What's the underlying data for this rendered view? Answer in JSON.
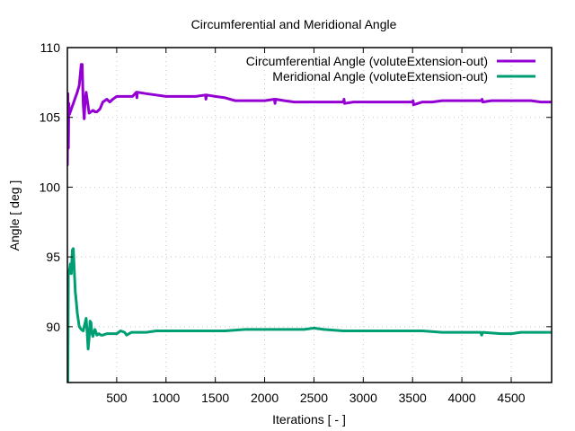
{
  "chart_data": {
    "type": "line",
    "title": "Circumferential and Meridional Angle",
    "xlabel": "Iterations [ - ]",
    "ylabel": "Angle [ deg ]",
    "xlim": [
      0,
      4910
    ],
    "ylim": [
      86.0,
      110
    ],
    "xticks": [
      500,
      1000,
      1500,
      2000,
      2500,
      3000,
      3500,
      4000,
      4500
    ],
    "xtick_labels": [
      "500",
      "1000",
      "1500",
      "2000",
      "2500",
      "3000",
      "3500",
      "4000",
      "4500"
    ],
    "yticks": [
      90,
      95,
      100,
      105,
      110
    ],
    "ytick_labels": [
      "90",
      "95",
      "100",
      "105",
      "110"
    ],
    "grid": true,
    "legend_position": "top-right",
    "series": [
      {
        "name": "Circumferential Angle (voluteExtension-out)",
        "color": "#9400d3",
        "x": [
          0,
          5,
          10,
          15,
          20,
          25,
          30,
          40,
          60,
          80,
          100,
          120,
          140,
          150,
          160,
          170,
          180,
          190,
          200,
          220,
          240,
          260,
          280,
          300,
          330,
          360,
          400,
          430,
          460,
          500,
          540,
          580,
          620,
          660,
          700,
          705,
          710,
          800,
          900,
          1000,
          1100,
          1200,
          1300,
          1400,
          1405,
          1410,
          1500,
          1600,
          1700,
          1800,
          1900,
          2000,
          2100,
          2105,
          2110,
          2200,
          2300,
          2400,
          2500,
          2600,
          2700,
          2800,
          2805,
          2810,
          2900,
          3000,
          3100,
          3200,
          3300,
          3400,
          3500,
          3505,
          3510,
          3600,
          3700,
          3800,
          3900,
          4000,
          4100,
          4200,
          4205,
          4210,
          4300,
          4400,
          4500,
          4600,
          4700,
          4800,
          4910
        ],
        "values": [
          101.6,
          106.7,
          102.8,
          106.0,
          105.2,
          105.3,
          105.4,
          105.6,
          106.0,
          106.4,
          106.8,
          107.3,
          108.8,
          108.8,
          106.0,
          104.9,
          106.2,
          106.8,
          106.3,
          105.3,
          105.4,
          105.5,
          105.4,
          105.4,
          105.6,
          106.1,
          106.3,
          106.1,
          106.3,
          106.5,
          106.5,
          106.5,
          106.5,
          106.5,
          106.8,
          106.4,
          106.8,
          106.7,
          106.6,
          106.5,
          106.5,
          106.5,
          106.5,
          106.6,
          106.3,
          106.6,
          106.5,
          106.4,
          106.2,
          106.2,
          106.2,
          106.2,
          106.3,
          106.0,
          106.3,
          106.2,
          106.1,
          106.1,
          106.1,
          106.1,
          106.1,
          106.1,
          106.3,
          106.0,
          106.1,
          106.1,
          106.1,
          106.1,
          106.1,
          106.1,
          106.1,
          106.2,
          105.9,
          106.1,
          106.1,
          106.2,
          106.2,
          106.2,
          106.2,
          106.2,
          106.3,
          106.1,
          106.2,
          106.2,
          106.2,
          106.2,
          106.2,
          106.1,
          106.1
        ]
      },
      {
        "name": "Meridional Angle (voluteExtension-out)",
        "color": "#009e73",
        "x": [
          0,
          5,
          10,
          15,
          20,
          30,
          40,
          50,
          60,
          70,
          80,
          90,
          100,
          120,
          140,
          160,
          180,
          190,
          200,
          210,
          220,
          230,
          240,
          250,
          260,
          270,
          280,
          300,
          320,
          340,
          360,
          400,
          450,
          500,
          540,
          580,
          600,
          650,
          700,
          800,
          900,
          1000,
          1200,
          1400,
          1600,
          1800,
          2000,
          2200,
          2400,
          2500,
          2600,
          2800,
          3000,
          3200,
          3400,
          3600,
          3800,
          4000,
          4190,
          4200,
          4210,
          4400,
          4500,
          4600,
          4800,
          4910
        ],
        "values": [
          86.0,
          86.0,
          94.0,
          93.8,
          94.0,
          94.5,
          93.8,
          95.5,
          95.6,
          94.0,
          92.5,
          91.8,
          91.0,
          90.0,
          89.8,
          89.7,
          90.3,
          90.6,
          89.6,
          88.4,
          89.2,
          90.4,
          90.3,
          89.5,
          89.3,
          89.6,
          89.8,
          89.4,
          89.5,
          89.4,
          89.4,
          89.5,
          89.5,
          89.5,
          89.7,
          89.6,
          89.4,
          89.6,
          89.6,
          89.6,
          89.7,
          89.7,
          89.7,
          89.7,
          89.7,
          89.8,
          89.8,
          89.8,
          89.8,
          89.9,
          89.8,
          89.7,
          89.7,
          89.7,
          89.7,
          89.7,
          89.6,
          89.6,
          89.6,
          89.4,
          89.6,
          89.5,
          89.5,
          89.6,
          89.6,
          89.6
        ]
      }
    ]
  }
}
